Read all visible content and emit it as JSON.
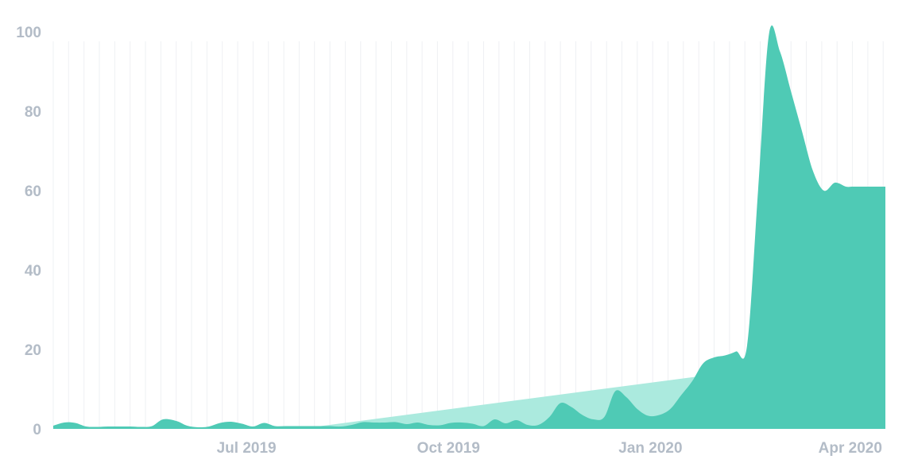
{
  "colors": {
    "series_fill": "#4fcab5",
    "trend_fill": "#abeade",
    "grid": "#eef0f3",
    "tick_text": "#b3bcc7",
    "background": "#ffffff"
  },
  "chart_data": {
    "type": "area",
    "title": "",
    "xlabel": "",
    "ylabel": "",
    "ylim": [
      0,
      100
    ],
    "yticks": [
      0,
      20,
      40,
      60,
      80,
      100
    ],
    "xlim": [
      "2019-04-04",
      "2020-04-17"
    ],
    "xticks": [
      {
        "date": "2019-07-01",
        "label": "Jul 2019"
      },
      {
        "date": "2019-10-01",
        "label": "Oct 2019"
      },
      {
        "date": "2020-01-01",
        "label": "Jan 2020"
      },
      {
        "date": "2020-04-01",
        "label": "Apr 2020"
      }
    ],
    "grid": {
      "vertical": "weekly",
      "horizontal": false
    },
    "series": [
      {
        "fill": "series_fill",
        "x": [
          "2019-04-04",
          "2019-04-09",
          "2019-04-14",
          "2019-04-19",
          "2019-04-24",
          "2019-04-29",
          "2019-05-04",
          "2019-05-09",
          "2019-05-14",
          "2019-05-19",
          "2019-05-24",
          "2019-05-30",
          "2019-06-04",
          "2019-06-09",
          "2019-06-14",
          "2019-06-19",
          "2019-06-24",
          "2019-06-29",
          "2019-07-04",
          "2019-07-09",
          "2019-07-14",
          "2019-07-19",
          "2019-07-24",
          "2019-07-29",
          "2019-08-03",
          "2019-08-08",
          "2019-08-13",
          "2019-08-18",
          "2019-08-23",
          "2019-08-28",
          "2019-09-02",
          "2019-09-07",
          "2019-09-12",
          "2019-09-17",
          "2019-09-22",
          "2019-09-27",
          "2019-10-02",
          "2019-10-07",
          "2019-10-12",
          "2019-10-17",
          "2019-10-22",
          "2019-10-27",
          "2019-11-01",
          "2019-11-06",
          "2019-11-11",
          "2019-11-16",
          "2019-11-21",
          "2019-11-26",
          "2019-12-01",
          "2019-12-06",
          "2019-12-11",
          "2019-12-16",
          "2019-12-21",
          "2019-12-26",
          "2019-12-31",
          "2020-01-05",
          "2020-01-10",
          "2020-01-15",
          "2020-01-20",
          "2020-01-25",
          "2020-01-30",
          "2020-02-04",
          "2020-02-09",
          "2020-02-14",
          "2020-02-19",
          "2020-02-24",
          "2020-02-29",
          "2020-03-05",
          "2020-03-10",
          "2020-03-15",
          "2020-03-20",
          "2020-03-25",
          "2020-03-30",
          "2020-04-02",
          "2020-04-04",
          "2020-04-05",
          "2020-04-07",
          "2020-04-09",
          "2020-04-11",
          "2020-04-13",
          "2020-04-15",
          "2020-04-17"
        ],
        "values": [
          0.8,
          1.6,
          1.5,
          0.6,
          0.5,
          0.6,
          0.6,
          0.6,
          0.5,
          0.7,
          2.4,
          2.0,
          0.8,
          0.4,
          0.6,
          1.5,
          1.8,
          1.3,
          0.6,
          1.5,
          0.7,
          0.7,
          0.7,
          0.7,
          0.7,
          0.7,
          0.6,
          1.0,
          1.7,
          1.6,
          1.6,
          1.7,
          1.2,
          1.6,
          1.0,
          0.9,
          1.5,
          1.6,
          1.3,
          0.7,
          2.4,
          1.4,
          2.2,
          1.0,
          1.0,
          3.0,
          6.5,
          5.5,
          3.5,
          2.4,
          3.0,
          9.5,
          8.0,
          5.0,
          3.3,
          3.5,
          5.0,
          8.5,
          12.0,
          16.5,
          18.0,
          18.5,
          19.5,
          21.0,
          60.0,
          99.5,
          95.0,
          85.0,
          75.0,
          65.0,
          60.0,
          62.0,
          61.0,
          61.0,
          61.0,
          61.0,
          61.0,
          61.0,
          61.0,
          61.0,
          61.0,
          61.0
        ]
      },
      {
        "fill": "trend_fill",
        "x": [
          "2019-08-01",
          "2020-03-26"
        ],
        "values": [
          0.5,
          17.8
        ]
      }
    ]
  }
}
